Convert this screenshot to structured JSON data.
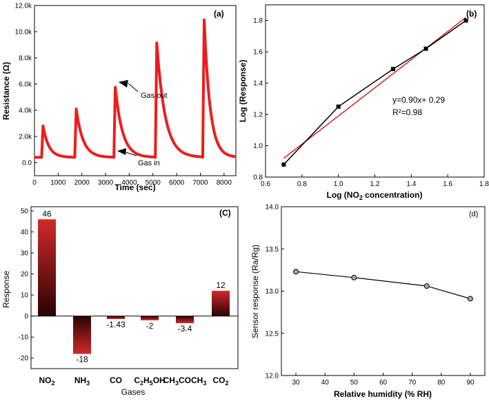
{
  "chart_data": [
    {
      "type": "line",
      "panel_label": "(a)",
      "title": "",
      "xlabel": "Time (sec)",
      "ylabel": "Resistance (Ω)",
      "xlim": [
        0,
        8500
      ],
      "ylim": [
        -1000,
        12000
      ],
      "xticks": [
        0,
        1000,
        2000,
        3000,
        4000,
        5000,
        6000,
        7000,
        8000
      ],
      "xtick_labels": [
        "0",
        "1000",
        "2000",
        "3000",
        "4000",
        "5000",
        "6000",
        "7000",
        "8000"
      ],
      "yticks": [
        0,
        2000,
        4000,
        6000,
        8000,
        10000,
        12000
      ],
      "ytick_labels": [
        "0.0",
        "2.0k",
        "4.0k",
        "6.0k",
        "8.0k",
        "10.0k",
        "12.0k"
      ],
      "line_color": "#ee1c1c",
      "baseline": 400,
      "pulses": [
        {
          "on": 300,
          "off": 1650,
          "peak": 2800
        },
        {
          "on": 1700,
          "off": 3300,
          "peak": 4100
        },
        {
          "on": 3350,
          "off": 5050,
          "peak": 5750
        },
        {
          "on": 5100,
          "off": 7050,
          "peak": 9150
        },
        {
          "on": 7100,
          "off": 8500,
          "peak": 10900
        }
      ],
      "annotations": [
        {
          "text": "Gas out",
          "x": 3420,
          "y": 5750
        },
        {
          "text": "Gas in",
          "x": 3420,
          "y": 400
        }
      ]
    },
    {
      "type": "scatter",
      "panel_label": "(b)",
      "title": "",
      "xlabel": "Log (NO₂ concentration)",
      "ylabel": "Log (Response)",
      "xlim": [
        0.6,
        1.8
      ],
      "ylim": [
        0.8,
        1.9
      ],
      "xticks": [
        0.6,
        0.8,
        1.0,
        1.2,
        1.4,
        1.6,
        1.8
      ],
      "xtick_labels": [
        "0.6",
        "0.8",
        "1.0",
        "1.2",
        "1.4",
        "1.6",
        "1.8"
      ],
      "yticks": [
        0.8,
        1.0,
        1.2,
        1.4,
        1.6,
        1.8
      ],
      "ytick_labels": [
        "0.8",
        "1.0",
        "1.2",
        "1.4",
        "1.6",
        "1.8"
      ],
      "x": [
        0.7,
        1.0,
        1.3,
        1.48,
        1.7
      ],
      "y": [
        0.88,
        1.25,
        1.49,
        1.62,
        1.8
      ],
      "point_color": "#000000",
      "fit": {
        "slope": 0.9,
        "intercept": 0.29,
        "x": [
          0.7,
          1.7
        ],
        "color": "#d42020"
      },
      "equation": "y=0.90x+ 0.29",
      "r2": "R²=0.98"
    },
    {
      "type": "bar",
      "panel_label": "(C)",
      "title": "",
      "xlabel": "Gases",
      "ylabel": "Response",
      "ylim": [
        -25,
        52
      ],
      "yticks": [
        -20,
        -10,
        0,
        10,
        20,
        30,
        40,
        50
      ],
      "ytick_labels": [
        "-20",
        "-10",
        "0",
        "10",
        "20",
        "30",
        "40",
        "50"
      ],
      "categories": [
        "NO₂",
        "NH₃",
        "CO",
        "C₂H₅OH",
        "CH₃COCH₃",
        "CO₂"
      ],
      "values": [
        46,
        -18,
        -1.43,
        -2,
        -3.4,
        12
      ],
      "value_labels": [
        "46",
        "-18",
        "-1.43",
        "-2",
        "-3.4",
        "12"
      ],
      "bar_color_top": "#d12a2a",
      "bar_color_bottom": "#2a0202"
    },
    {
      "type": "line",
      "panel_label": "(d)",
      "title": "",
      "xlabel": "Relative humidity (% RH)",
      "ylabel": "Sensor response (Ra/Rg)",
      "xlim": [
        25,
        95
      ],
      "ylim": [
        12.0,
        14.0
      ],
      "xticks": [
        30,
        40,
        50,
        60,
        70,
        80,
        90
      ],
      "xtick_labels": [
        "30",
        "40",
        "50",
        "60",
        "70",
        "80",
        "90"
      ],
      "yticks": [
        12.0,
        12.5,
        13.0,
        13.5,
        14.0
      ],
      "ytick_labels": [
        "12.0",
        "12.5",
        "13.0",
        "13.5",
        "14.0"
      ],
      "x": [
        30,
        50,
        75,
        90
      ],
      "y": [
        13.23,
        13.16,
        13.06,
        12.91
      ],
      "line_color": "#000000",
      "marker_color": "#a8a8a8"
    }
  ]
}
